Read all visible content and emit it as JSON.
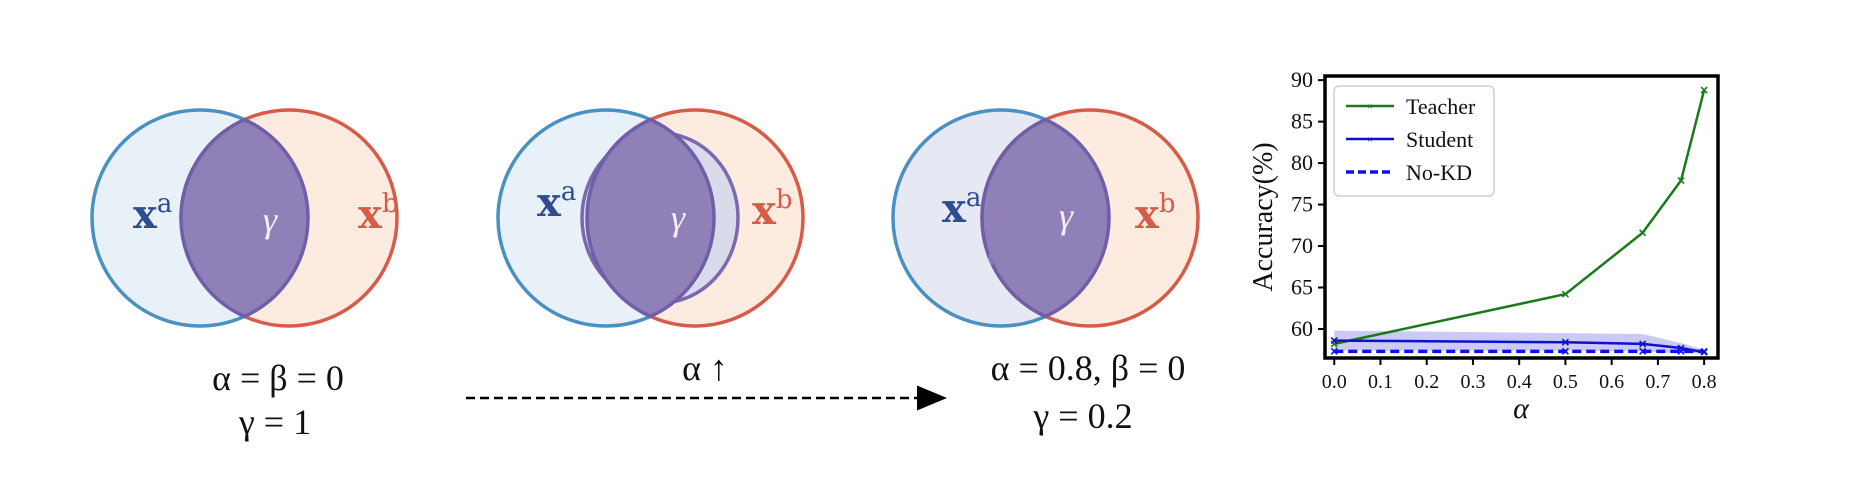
{
  "colors": {
    "blue_stroke": "#4a90c0",
    "blue_fill": "#e8f1f8",
    "red_stroke": "#d65c4a",
    "red_fill": "#fdebe0",
    "purple_fill": "#8f80b8",
    "purple_stroke": "#6f5ea8",
    "alpha_fill": "#dadbea",
    "xa_color": "#2e4c8e",
    "xb_color": "#d65c4a",
    "greek_light": "#8a7fb8",
    "teacher": "#1a7a1a",
    "student": "#1010cc",
    "nokd": "#1010ee",
    "band": "#b8b8f0"
  },
  "venn": {
    "xa_base": "x",
    "xa_sup": "a",
    "xb_base": "x",
    "xb_sup": "b",
    "gamma": "γ",
    "alpha": "α"
  },
  "captions": {
    "panel1_line1": "α = β = 0",
    "panel1_line2": "γ = 1",
    "panel2": "α ↑",
    "panel3_line1": "α = 0.8, β = 0",
    "panel3_line2": "γ = 0.2"
  },
  "chart_data": {
    "type": "line",
    "xlabel": "α",
    "ylabel": "Accuracy(%)",
    "xlim": [
      -0.02,
      0.83
    ],
    "ylim": [
      56.5,
      90.5
    ],
    "xticks": [
      "0.0",
      "0.1",
      "0.2",
      "0.3",
      "0.4",
      "0.5",
      "0.6",
      "0.7",
      "0.8"
    ],
    "yticks": [
      "60",
      "65",
      "70",
      "75",
      "80",
      "85",
      "90"
    ],
    "legend_position": "top-left",
    "series": [
      {
        "name": "Teacher",
        "x": [
          0.0,
          0.5,
          0.667,
          0.75,
          0.8
        ],
        "y": [
          58.2,
          64.2,
          71.6,
          77.9,
          88.8
        ],
        "style": "solid"
      },
      {
        "name": "Student",
        "x": [
          0.0,
          0.5,
          0.667,
          0.75,
          0.8
        ],
        "y": [
          58.6,
          58.4,
          58.2,
          57.7,
          57.2
        ],
        "band_low": [
          57.4,
          57.4,
          57.3,
          57.1,
          57.0
        ],
        "band_high": [
          59.8,
          59.5,
          59.4,
          58.3,
          57.5
        ],
        "style": "solid"
      },
      {
        "name": "No-KD",
        "x": [
          0.0,
          0.5,
          0.667,
          0.75,
          0.8
        ],
        "y": [
          57.3,
          57.3,
          57.3,
          57.3,
          57.3
        ],
        "style": "dashed"
      }
    ]
  }
}
